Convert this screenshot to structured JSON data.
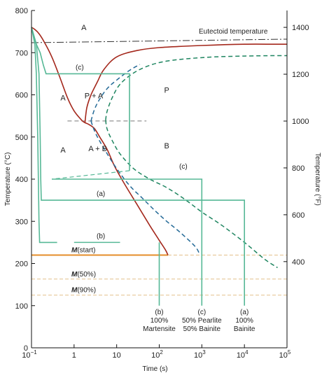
{
  "chart_data": {
    "type": "line",
    "title": "",
    "xlabel": "Time (s)",
    "ylabel": "Temperature (°C)",
    "y2label": "Temperature (°F)",
    "xscale": "log",
    "xlim": [
      0.1,
      100000
    ],
    "ylim": [
      0,
      800
    ],
    "y2lim": [
      32,
      1472
    ],
    "x_ticks": [
      {
        "value": 0.1,
        "base": "10",
        "exp": "−1"
      },
      {
        "value": 1,
        "label": "1"
      },
      {
        "value": 10,
        "label": "10"
      },
      {
        "value": 100,
        "base": "10",
        "exp": "2"
      },
      {
        "value": 1000,
        "base": "10",
        "exp": "3"
      },
      {
        "value": 10000,
        "base": "10",
        "exp": "4"
      },
      {
        "value": 100000,
        "base": "10",
        "exp": "5"
      }
    ],
    "y_ticks": [
      0,
      100,
      200,
      300,
      400,
      500,
      600,
      700,
      800
    ],
    "y2_ticks": [
      400,
      600,
      800,
      1000,
      1200,
      1400
    ],
    "eutectoid": {
      "label": "Eutectoid temperature",
      "temperature": 727
    },
    "martensite_lines": [
      {
        "label_italic": "M",
        "label_rest": "(start)",
        "temperature": 220
      },
      {
        "label_italic": "M",
        "label_rest": "(50%)",
        "temperature": 163
      },
      {
        "label_italic": "M",
        "label_rest": "(90%)",
        "temperature": 125
      }
    ],
    "regions": [
      {
        "label": "A",
        "x": 1.7,
        "y": 760
      },
      {
        "label": "A",
        "x": 0.55,
        "y": 593
      },
      {
        "label": "A",
        "x": 0.55,
        "y": 470
      },
      {
        "label": "P + A",
        "x": 2.9,
        "y": 598
      },
      {
        "label": "P",
        "x": 150,
        "y": 612
      },
      {
        "label": "A + B",
        "x": 3.6,
        "y": 473
      },
      {
        "label": "B",
        "x": 150,
        "y": 480
      }
    ],
    "series": [
      {
        "points": [
          [
            0.1,
            760
          ],
          [
            0.12,
            755
          ],
          [
            0.15,
            745
          ],
          [
            0.2,
            725
          ],
          [
            0.3,
            690
          ],
          [
            0.45,
            645
          ],
          [
            0.7,
            593
          ],
          [
            1.0,
            562
          ],
          [
            1.5,
            540
          ],
          [
            1.8,
            534
          ],
          [
            2.2,
            530
          ],
          [
            3,
            520
          ],
          [
            4,
            500
          ],
          [
            6,
            470
          ],
          [
            9,
            430
          ],
          [
            15,
            390
          ],
          [
            30,
            340
          ],
          [
            60,
            290
          ],
          [
            100,
            255
          ],
          [
            140,
            232
          ],
          [
            160,
            220
          ]
        ]
      },
      {
        "points": [
          [
            1.8,
            534
          ],
          [
            2,
            570
          ],
          [
            2.5,
            600
          ],
          [
            3.5,
            630
          ],
          [
            5,
            660
          ],
          [
            10,
            690
          ],
          [
            30,
            705
          ],
          [
            100,
            712
          ],
          [
            1000,
            717
          ],
          [
            10000,
            720
          ],
          [
            50000,
            720
          ],
          [
            100000,
            720
          ]
        ]
      },
      {
        "points": [
          [
            2.5,
            538
          ],
          [
            3,
            565
          ],
          [
            4,
            590
          ],
          [
            6,
            615
          ],
          [
            10,
            635
          ],
          [
            20,
            658
          ],
          [
            35,
            672
          ]
        ]
      },
      {
        "points": [
          [
            2.5,
            538
          ],
          [
            3,
            515
          ],
          [
            4,
            490
          ],
          [
            6,
            460
          ],
          [
            10,
            425
          ],
          [
            20,
            385
          ],
          [
            40,
            355
          ],
          [
            80,
            325
          ],
          [
            150,
            300
          ],
          [
            300,
            275
          ],
          [
            700,
            240
          ],
          [
            900,
            220
          ]
        ]
      },
      {
        "points": [
          [
            5.5,
            540
          ],
          [
            6,
            562
          ],
          [
            8,
            595
          ],
          [
            12,
            625
          ],
          [
            25,
            652
          ],
          [
            60,
            670
          ],
          [
            150,
            680
          ],
          [
            500,
            686
          ],
          [
            2000,
            690
          ],
          [
            10000,
            692
          ],
          [
            50000,
            693
          ],
          [
            100000,
            693
          ]
        ]
      },
      {
        "points": [
          [
            5.5,
            540
          ],
          [
            6,
            518
          ],
          [
            8,
            490
          ],
          [
            12,
            460
          ],
          [
            25,
            425
          ],
          [
            60,
            400
          ],
          [
            150,
            380
          ],
          [
            400,
            352
          ],
          [
            1000,
            322
          ],
          [
            3000,
            290
          ],
          [
            10000,
            250
          ],
          [
            30000,
            210
          ],
          [
            60000,
            190
          ]
        ]
      }
    ],
    "cooling_paths": [
      {
        "label": "(a)",
        "caption": [
          "(a)",
          "100%",
          "Bainite"
        ],
        "points": [
          [
            0.1,
            760
          ],
          [
            0.13,
            720
          ],
          [
            0.15,
            650
          ],
          [
            0.16,
            500
          ],
          [
            0.165,
            400
          ],
          [
            0.17,
            350
          ],
          [
            10000,
            350
          ],
          [
            10000,
            100
          ]
        ]
      },
      {
        "label": "(b)",
        "caption": [
          "(b)",
          "100%",
          "Martensite"
        ],
        "points": [
          [
            0.1,
            760
          ],
          [
            0.12,
            720
          ],
          [
            0.13,
            650
          ],
          [
            0.14,
            500
          ],
          [
            0.145,
            400
          ],
          [
            0.15,
            300
          ],
          [
            0.155,
            250
          ],
          [
            0.4,
            250
          ]
        ]
      },
      {
        "label": "(c)",
        "caption": [
          "(c)",
          "50% Pearlite",
          "50% Bainite"
        ],
        "points": [
          [
            0.1,
            760
          ],
          [
            0.13,
            720
          ],
          [
            0.16,
            700
          ],
          [
            0.19,
            670
          ],
          [
            0.22,
            650
          ],
          [
            20,
            650
          ],
          [
            20,
            420
          ],
          [
            0.3,
            400
          ],
          [
            1000,
            400
          ],
          [
            1000,
            100
          ]
        ]
      }
    ],
    "grid": false,
    "legend": "none"
  }
}
